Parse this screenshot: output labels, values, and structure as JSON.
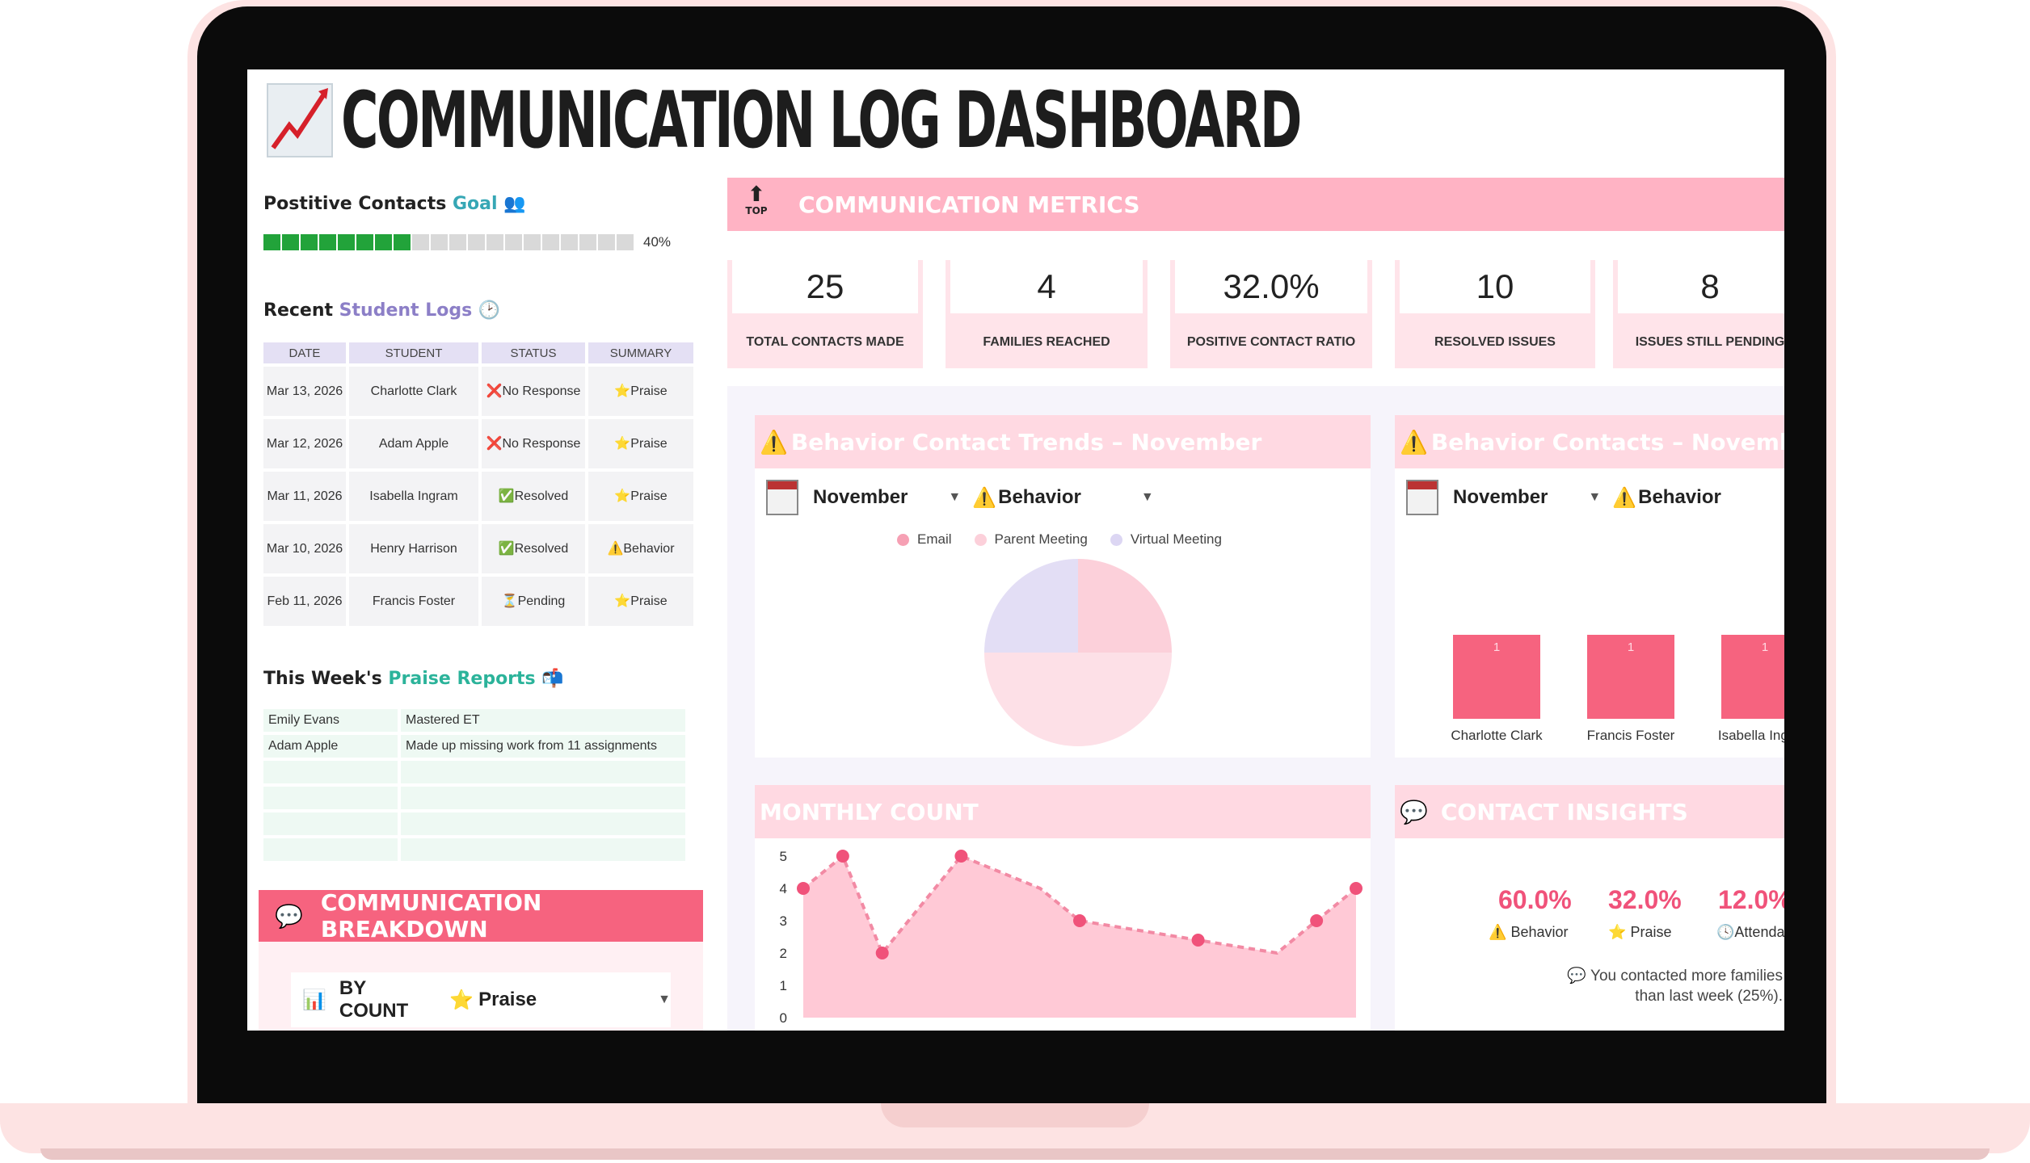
{
  "title": "COMMUNICATION LOG DASHBOARD",
  "goal": {
    "label_a": "Postitive Contacts ",
    "label_b": "Goal",
    "icon": "people-icon",
    "percent_text": "40%",
    "progress_fraction": 0.4,
    "segments_total": 20,
    "segments_filled": 8
  },
  "recent_logs": {
    "label_a": "Recent ",
    "label_b": "Student Logs",
    "icon": "clock-icon",
    "headers": [
      "DATE",
      "STUDENT",
      "STATUS",
      "SUMMARY"
    ],
    "rows": [
      {
        "date": "Mar 13, 2026",
        "student": "Charlotte Clark",
        "status_icon": "❌",
        "status": "No Response",
        "summary_icon": "⭐",
        "summary": "Praise"
      },
      {
        "date": "Mar 12, 2026",
        "student": "Adam Apple",
        "status_icon": "❌",
        "status": "No Response",
        "summary_icon": "⭐",
        "summary": "Praise"
      },
      {
        "date": "Mar 11, 2026",
        "student": "Isabella Ingram",
        "status_icon": "✅",
        "status": "Resolved",
        "summary_icon": "⭐",
        "summary": "Praise"
      },
      {
        "date": "Mar 10, 2026",
        "student": "Henry Harrison",
        "status_icon": "✅",
        "status": "Resolved",
        "summary_icon": "⚠️",
        "summary": "Behavior"
      },
      {
        "date": "Feb 11, 2026",
        "student": "Francis Foster",
        "status_icon": "⏳",
        "status": "Pending",
        "summary_icon": "⭐",
        "summary": "Praise"
      }
    ]
  },
  "praise_reports": {
    "label_a": "This Week's ",
    "label_b": "Praise Reports",
    "icon": "mailbox-icon",
    "rows": [
      {
        "student": "Emily Evans",
        "note": "Mastered ET"
      },
      {
        "student": "Adam Apple",
        "note": "Made up missing work from 11 assignments"
      },
      {
        "student": "",
        "note": ""
      },
      {
        "student": "",
        "note": ""
      },
      {
        "student": "",
        "note": ""
      },
      {
        "student": "",
        "note": ""
      }
    ]
  },
  "breakdown": {
    "title": "COMMUNICATION BREAKDOWN",
    "by_count": "BY COUNT",
    "filter_value": "Praise"
  },
  "metrics": {
    "title": "COMMUNICATION METRICS",
    "top_label": "TOP",
    "cards": [
      {
        "value": "25",
        "label": "TOTAL CONTACTS MADE"
      },
      {
        "value": "4",
        "label": "FAMILIES REACHED"
      },
      {
        "value": "32.0%",
        "label": "POSITIVE CONTACT RATIO"
      },
      {
        "value": "10",
        "label": "RESOLVED ISSUES"
      },
      {
        "value": "8",
        "label": "ISSUES STILL PENDING"
      }
    ]
  },
  "trends": {
    "title": "Behavior Contact Trends – November",
    "month": "November",
    "category": "Behavior",
    "legend": [
      {
        "name": "Email",
        "color": "#f6a0b4"
      },
      {
        "name": "Parent Meeting",
        "color": "#fcd0da"
      },
      {
        "name": "Virtual Meeting",
        "color": "#dcd6f3"
      }
    ]
  },
  "contacts": {
    "title": "Behavior Contacts – November",
    "month": "November",
    "category": "Behavior"
  },
  "monthly": {
    "title": "MONTHLY COUNT"
  },
  "insights": {
    "title": "CONTACT INSIGHTS",
    "items": [
      {
        "pct": "60.0%",
        "icon": "⚠️",
        "label": "Behavior"
      },
      {
        "pct": "32.0%",
        "icon": "⭐",
        "label": "Praise"
      },
      {
        "pct": "12.0%",
        "icon": "🕓",
        "label": "Attendance"
      }
    ],
    "note_line1": "You contacted more families",
    "note_line2": "than last week (25%)."
  },
  "chart_data": [
    {
      "type": "pie",
      "categories": [
        "Email",
        "Parent Meeting",
        "Virtual Meeting"
      ],
      "values": [
        1,
        2,
        1
      ],
      "colors": [
        "#fcd0da",
        "#fde0e7",
        "#e3def5"
      ]
    },
    {
      "type": "bar",
      "categories": [
        "Charlotte Clark",
        "Francis Foster",
        "Isabella Ingram"
      ],
      "values": [
        1,
        1,
        1
      ],
      "data_labels": [
        "1",
        "1",
        "1"
      ],
      "color": "#f6637f"
    },
    {
      "type": "area",
      "x": [
        0,
        1,
        2,
        3,
        4,
        5,
        6,
        7,
        8,
        9,
        10,
        11,
        12,
        13,
        14
      ],
      "values": [
        4,
        5,
        2,
        3.5,
        5,
        4.5,
        4,
        3,
        2.8,
        2.6,
        2.4,
        2.2,
        2,
        3,
        4
      ],
      "ylim": [
        0,
        5
      ],
      "yticks": [
        "0",
        "1",
        "2",
        "3",
        "4",
        "5"
      ],
      "color": "#f28aa4",
      "fill": "#ffc9d6"
    }
  ]
}
